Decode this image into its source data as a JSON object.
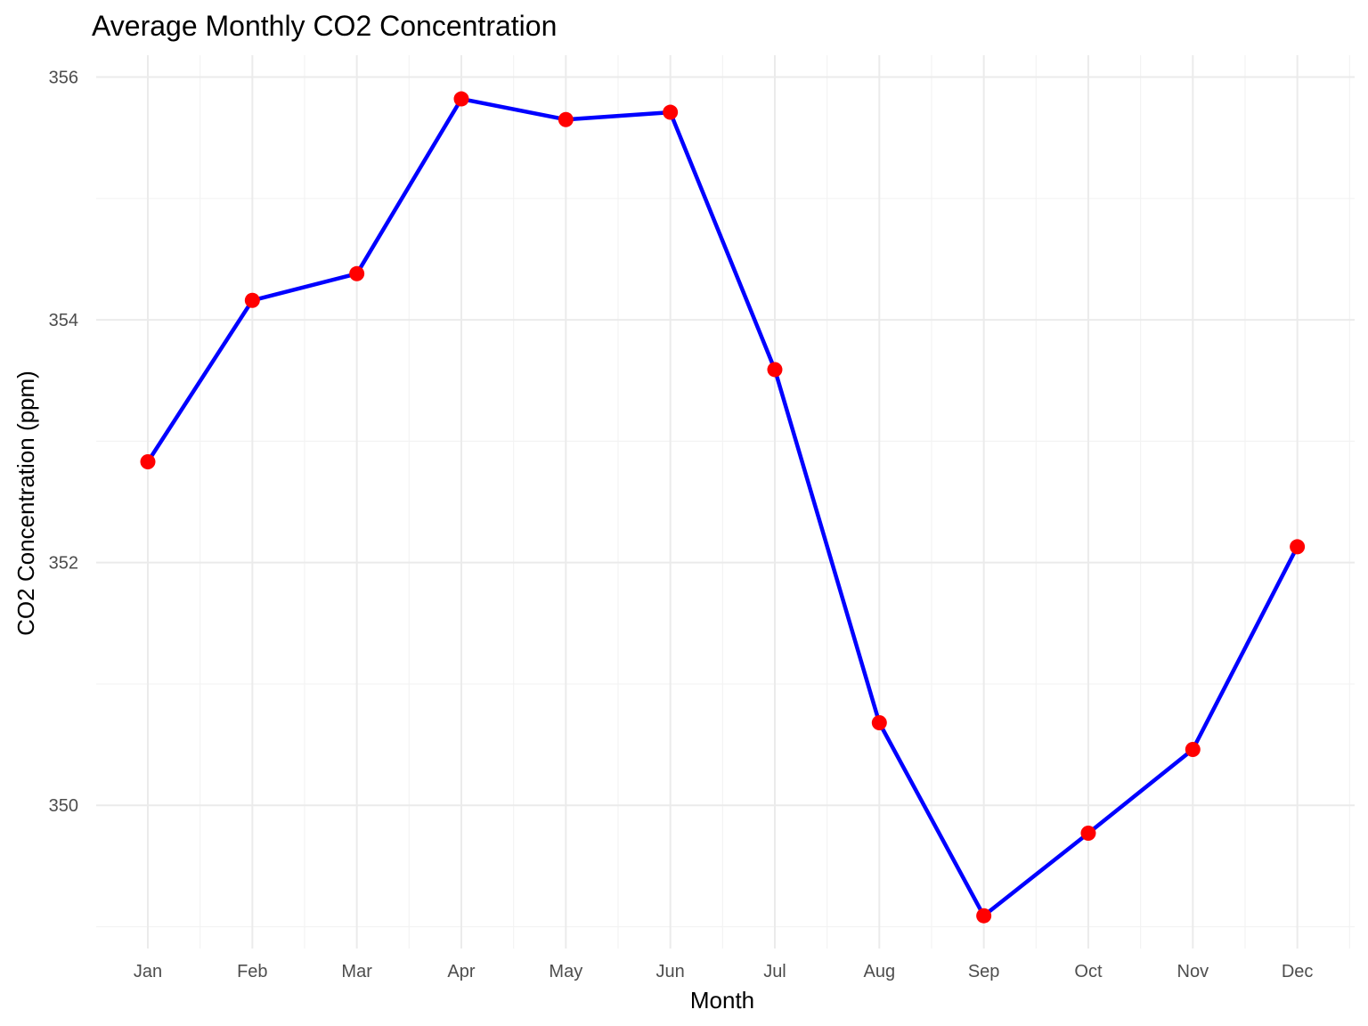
{
  "chart_data": {
    "type": "line",
    "title": "Average Monthly CO2 Concentration",
    "xlabel": "Month",
    "ylabel": "CO2 Concentration (ppm)",
    "categories": [
      "Jan",
      "Feb",
      "Mar",
      "Apr",
      "May",
      "Jun",
      "Jul",
      "Aug",
      "Sep",
      "Oct",
      "Nov",
      "Dec"
    ],
    "series": [
      {
        "values": [
          352.83,
          354.16,
          354.38,
          355.82,
          355.65,
          355.71,
          353.59,
          350.68,
          349.09,
          349.77,
          350.46,
          352.13
        ]
      }
    ],
    "yticks": [
      350,
      352,
      354,
      356
    ],
    "ylim": [
      348.82,
      356.18
    ],
    "grid": true,
    "legend": "none",
    "line_color": "#0000ff",
    "point_color": "#ff0000"
  }
}
